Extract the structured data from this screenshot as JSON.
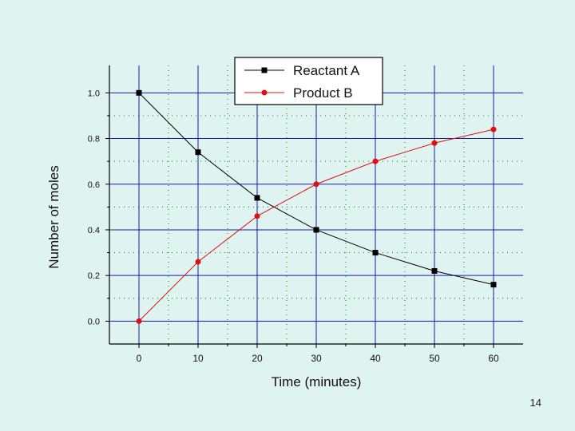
{
  "chart_data": {
    "type": "line",
    "title": "",
    "xlabel": "Time (minutes)",
    "ylabel": "Number of moles",
    "x": [
      0,
      10,
      20,
      30,
      40,
      50,
      60
    ],
    "xlim": [
      -5,
      65
    ],
    "ylim": [
      -0.1,
      1.12
    ],
    "x_ticks": [
      0,
      10,
      20,
      30,
      40,
      50,
      60
    ],
    "y_ticks": [
      0.0,
      0.2,
      0.4,
      0.6,
      0.8,
      1.0
    ],
    "y_tick_labels": [
      "0.0",
      "0.2",
      "0.4",
      "0.6",
      "0.8",
      "1.0"
    ],
    "grid": true,
    "legend_position": "top-center",
    "series": [
      {
        "name": "Reactant A",
        "values": [
          1.0,
          0.74,
          0.54,
          0.4,
          0.3,
          0.22,
          0.16
        ],
        "color": "#000000",
        "marker": "square"
      },
      {
        "name": "Product B",
        "values": [
          0.0,
          0.26,
          0.46,
          0.6,
          0.7,
          0.78,
          0.84
        ],
        "color": "#e01010",
        "marker": "circle"
      }
    ]
  },
  "colors": {
    "background": "#dff4f1",
    "major_grid": "#1a1aa8",
    "minor_grid": "#1f9a1f"
  },
  "slide": {
    "number": "14"
  }
}
